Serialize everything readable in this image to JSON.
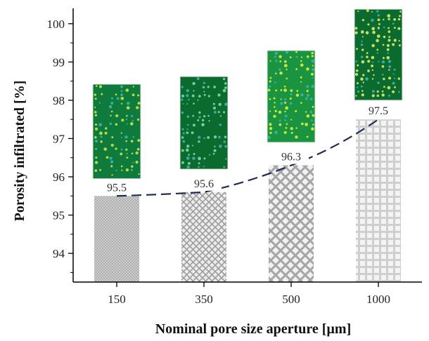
{
  "chart_data": {
    "type": "bar",
    "categories": [
      "150",
      "350",
      "500",
      "1000"
    ],
    "values": [
      95.5,
      95.6,
      96.3,
      97.5
    ],
    "data_labels": [
      "95.5",
      "95.6",
      "96.3",
      "97.5"
    ],
    "xlabel": "Nominal pore size aperture [µm]",
    "ylabel": "Porosity infiltrated [%]",
    "ylim": [
      93.25,
      100.4
    ],
    "yticks": [
      "94",
      "95",
      "96",
      "97",
      "98",
      "99",
      "100"
    ],
    "trend_line": "dashed",
    "colors": {
      "bar_fill": "#c8c8c8",
      "trend": "#1f2a5a",
      "axis": "#000000"
    },
    "bar_patterns": [
      "fine-crosshatch",
      "diamond-crosshatch",
      "large-diamond",
      "grid"
    ],
    "insets": [
      {
        "category": "150",
        "top": 98.42,
        "bottom": 95.95,
        "base": "#0e7a3c",
        "dots": "#c8e64a"
      },
      {
        "category": "350",
        "top": 98.62,
        "bottom": 96.2,
        "base": "#0b6a2e",
        "dots": "#7fd6a8"
      },
      {
        "category": "500",
        "top": 99.3,
        "bottom": 96.9,
        "base": "#1a9440",
        "dots": "#d8ef40"
      },
      {
        "category": "1000",
        "top": 100.38,
        "bottom": 98.0,
        "base": "#0b6a2e",
        "dots": "#dbea6e"
      }
    ]
  }
}
